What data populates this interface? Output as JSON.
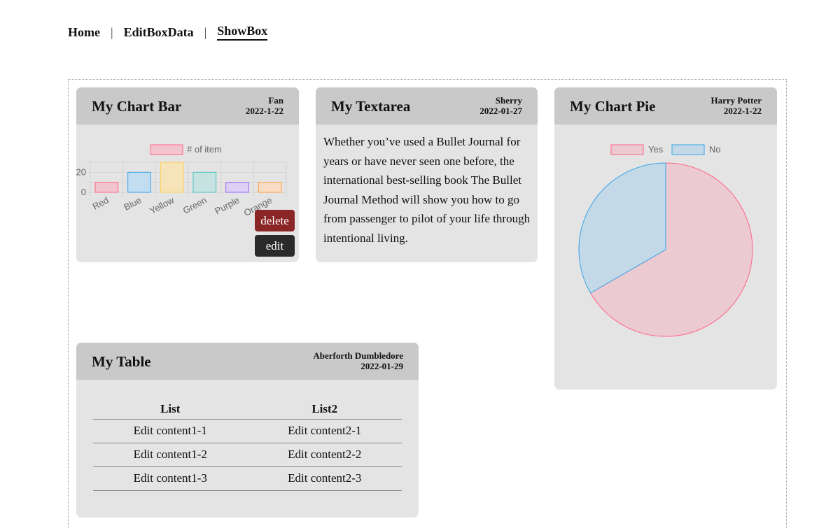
{
  "nav": {
    "items": [
      {
        "label": "Home"
      },
      {
        "label": "EditBoxData"
      },
      {
        "label": "ShowBox"
      }
    ],
    "separator": "|"
  },
  "cards": {
    "bar": {
      "title": "My Chart Bar",
      "author": "Fan",
      "date": "2022-1-22",
      "delete_label": "delete",
      "edit_label": "edit"
    },
    "textarea": {
      "title": "My Textarea",
      "author": "Sherry",
      "date": "2022-01-27",
      "body": "Whether you’ve used a Bullet Journal for years or have never seen one before, the international best-selling book The Bullet Journal Method will show you how to go from passenger to pilot of your life through intentional living."
    },
    "pie": {
      "title": "My Chart Pie",
      "author": "Harry Potter",
      "date": "2022-1-22"
    },
    "table": {
      "title": "My Table",
      "author": "Aberforth Dumbledore",
      "date": "2022-01-29",
      "columns": [
        "List",
        "List2"
      ],
      "rows": [
        [
          "Edit content1-1",
          "Edit content2-1"
        ],
        [
          "Edit content1-2",
          "Edit content2-2"
        ],
        [
          "Edit content1-3",
          "Edit content2-3"
        ]
      ]
    }
  },
  "chart_data": [
    {
      "type": "bar",
      "categories": [
        "Red",
        "Blue",
        "Yellow",
        "Green",
        "Purple",
        "Orange"
      ],
      "series": [
        {
          "name": "# of item",
          "values": [
            10,
            20,
            30,
            20,
            10,
            10
          ]
        }
      ],
      "yticks": [
        "20",
        "0"
      ],
      "colors": {
        "fill": [
          "#f2c4ce",
          "#c2dcf0",
          "#f7e3b8",
          "#c6e3e2",
          "#dcd0f5",
          "#f8dcc3"
        ],
        "stroke": [
          "#ff6384",
          "#36a2eb",
          "#ffce56",
          "#4bc0c0",
          "#9966ff",
          "#ff9f40"
        ]
      },
      "legend_position": "top"
    },
    {
      "type": "pie",
      "categories": [
        "Yes",
        "No"
      ],
      "values": [
        2,
        1
      ],
      "colors": {
        "fill": [
          "#ebcad2",
          "#c4d9e8"
        ],
        "stroke": [
          "#ff6384",
          "#36a2eb"
        ]
      },
      "legend_position": "top"
    }
  ]
}
